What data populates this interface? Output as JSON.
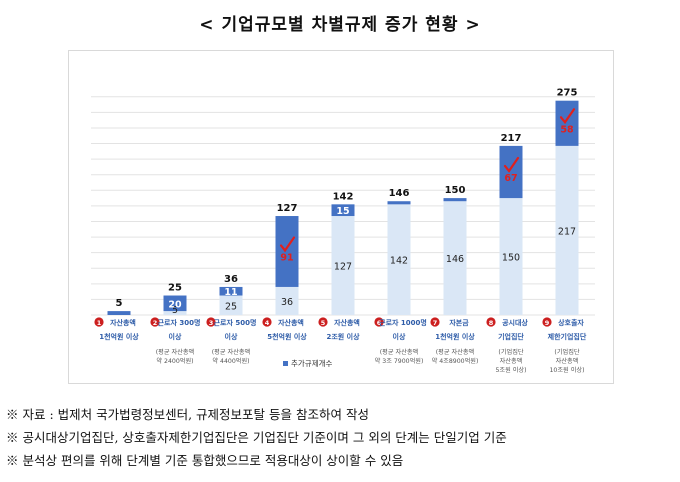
{
  "page_title": "< 기업규모별 차별규제 증가 현황 >",
  "chart_data": {
    "type": "bar",
    "stacked": true,
    "title": "",
    "categories": [
      {
        "num": "1",
        "lines": [
          "자산총액",
          "1천억원 이상"
        ],
        "sub": []
      },
      {
        "num": "2",
        "lines": [
          "근로자 300명",
          "이상"
        ],
        "sub": [
          "(평균 자산총액",
          "약 2400억원)"
        ]
      },
      {
        "num": "3",
        "lines": [
          "근로자 500명",
          "이상"
        ],
        "sub": [
          "(평균 자산총액",
          "약 4400억원)"
        ]
      },
      {
        "num": "4",
        "lines": [
          "자산총액",
          "5천억원 이상"
        ],
        "sub": []
      },
      {
        "num": "5",
        "lines": [
          "자산총액",
          "2조원 이상"
        ],
        "sub": []
      },
      {
        "num": "6",
        "lines": [
          "근로자 1000명",
          "이상"
        ],
        "sub": [
          "(평균 자산총액",
          "약 3조 7900억원)"
        ]
      },
      {
        "num": "7",
        "lines": [
          "자본금",
          "1천억원 이상"
        ],
        "sub": [
          "(평균 자산총액",
          "약 4조8900억원)"
        ]
      },
      {
        "num": "8",
        "lines": [
          "공시대상",
          "기업집단"
        ],
        "sub": [
          "(기업집단",
          "자산총액",
          "5조원 이상)"
        ]
      },
      {
        "num": "9",
        "lines": [
          "상호출자",
          "제한기업집단"
        ],
        "sub": [
          "(기업집단",
          "자산총액",
          "10조원 이상)"
        ]
      }
    ],
    "series": [
      {
        "name": "",
        "role": "base",
        "color": "#dae7f6",
        "values": [
          0,
          5,
          25,
          36,
          127,
          142,
          146,
          150,
          217
        ]
      },
      {
        "name": "추가규제개수",
        "role": "added",
        "color": "#4472c4",
        "values": [
          5,
          20,
          11,
          91,
          15,
          4,
          4,
          67,
          58
        ]
      }
    ],
    "totals": [
      5,
      25,
      36,
      127,
      142,
      146,
      150,
      217,
      275
    ],
    "base_labels": [
      "",
      "5",
      "25",
      "36",
      "127",
      "142",
      "146",
      "150",
      "217"
    ],
    "added_labels": [
      "",
      "20",
      "11",
      "91",
      "15",
      "",
      "",
      "67",
      "58"
    ],
    "highlighted": [
      3,
      7,
      8
    ],
    "highlight_color": "#e0201e",
    "ylim": [
      0,
      290
    ],
    "grid": true,
    "legend_position": "bottom"
  },
  "notes": [
    "※ 자료 : 법제처 국가법령정보센터, 규제정보포탈 등을 참조하여 작성",
    "※ 공시대상기업집단, 상호출자제한기업집단은 기업집단 기준이며 그 외의 단계는 단일기업 기준",
    "※ 분석상 편의를 위해 단계별 기준 통합했으므로 적용대상이 상이할 수 있음"
  ]
}
